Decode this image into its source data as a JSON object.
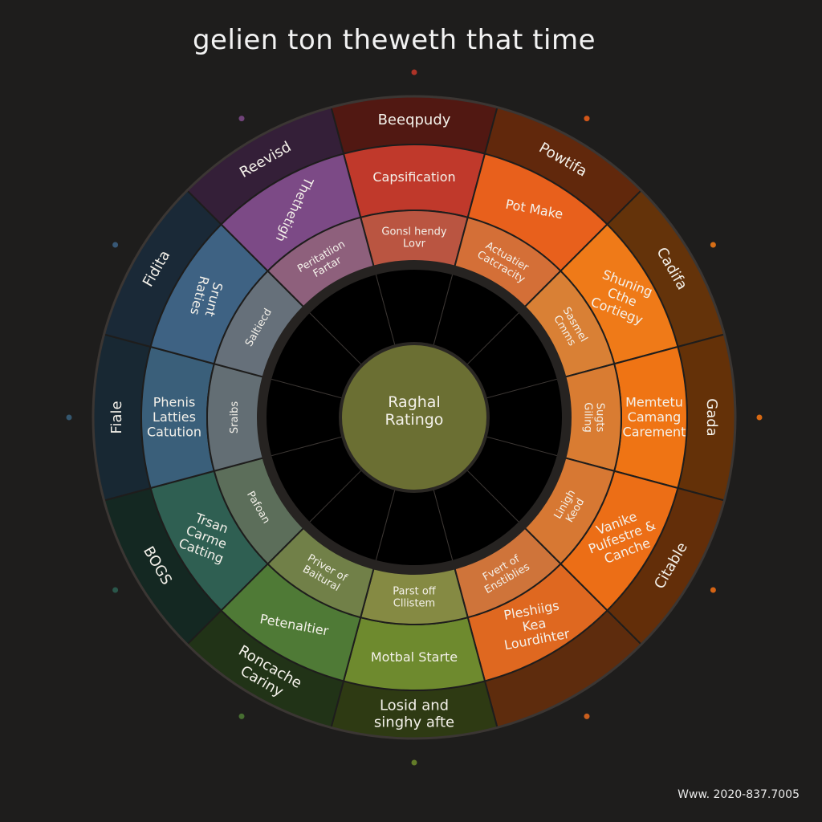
{
  "title": "gelien ton thewеth that time",
  "footer": "Www. 2020-837.7005",
  "center_label": [
    "Raghal",
    "Ratingo"
  ],
  "colors": {
    "background": "#1e1d1c",
    "center": "#6b6f33",
    "ring_dark": "#262321",
    "text": "#f4f1ea"
  },
  "outer_labels": [
    {
      "text": "Beeqpudy",
      "rot": false
    },
    {
      "text": "Powtifa",
      "rot": true
    },
    {
      "text": "Cadifa",
      "rot": true
    },
    {
      "text": "Gada",
      "rot": true
    },
    {
      "text": "Citable",
      "rot": true
    },
    {
      "text": "",
      "rot": true
    },
    {
      "text": "Losid and|singhy afte",
      "rot": false
    },
    {
      "text": "Roncache|Cariny",
      "rot": true
    },
    {
      "text": "BOGS",
      "rot": true
    },
    {
      "text": "Fiale",
      "rot": true
    },
    {
      "text": "Fidita",
      "rot": true
    },
    {
      "text": "Reevisd",
      "rot": true
    }
  ],
  "middle_labels": [
    "Capsification",
    "Pot Make",
    "Shuning|Cthe|Cortiegy",
    "Memtetu|Camang|Carement",
    "Vanike|Pulfestre &|Canche",
    "Pleshiigs|Kea|Lourdihter",
    "Motbal Starte",
    "Petenaltier",
    "Trsan|Carme|Catting",
    "Phenis|Latties|Catution",
    "Srunt|Raties",
    "Thethetigh"
  ],
  "inner_labels": [
    "Gonsl hendy|Lovr",
    "Actuatier|Catcracity",
    "Sasmel|Cmms",
    "Sugts|Giling",
    "Linigh|Keod",
    "Fvert of|Enstiblies",
    "Parst off|Cllistem",
    "Priver of|Baitural",
    "Pafoan",
    "Sraibs",
    "Saltiecd",
    "Peritatlion|Fartar"
  ],
  "sector_colors": [
    "#c0392b",
    "#e8601c",
    "#ef7a18",
    "#ef7414",
    "#ec6e16",
    "#df6820",
    "#6e8a2e",
    "#4f7a36",
    "#2f5f52",
    "#3a5f7a",
    "#3e6283",
    "#7c4a86"
  ]
}
